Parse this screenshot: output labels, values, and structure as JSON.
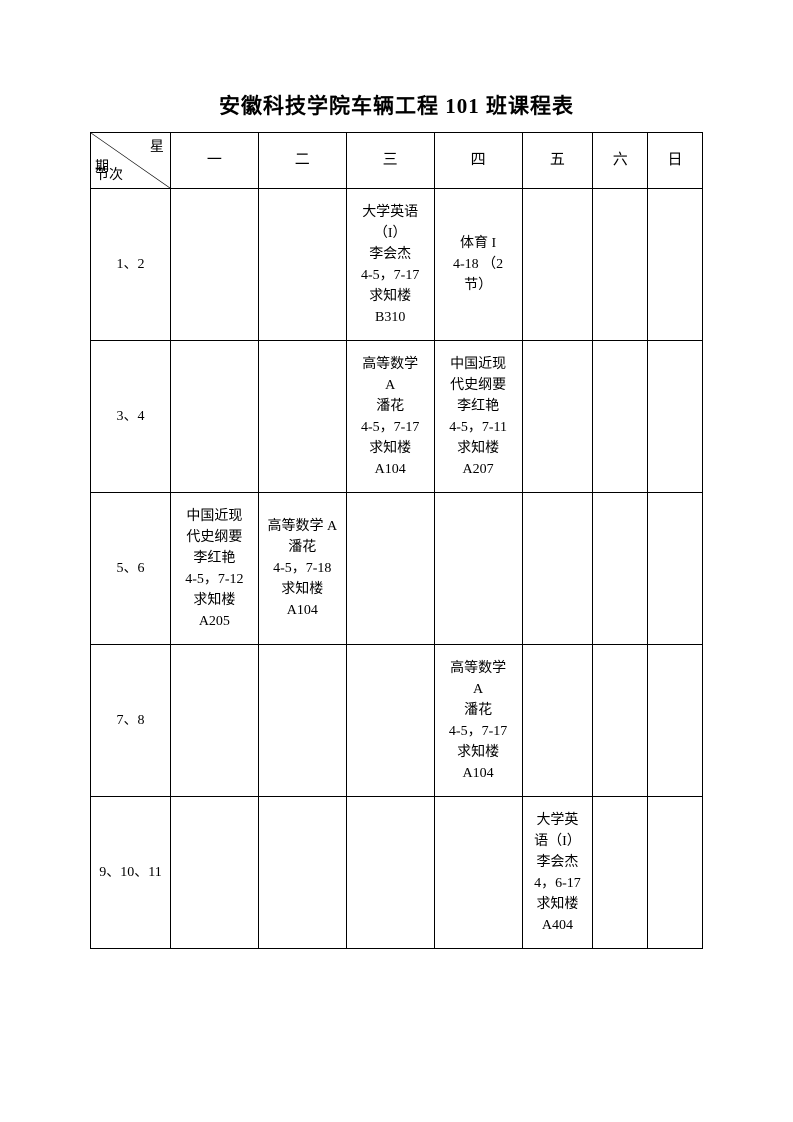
{
  "title": "安徽科技学院车辆工程 101 班课程表",
  "header": {
    "diag_top": "星",
    "diag_mid": "期",
    "diag_bot": "节次",
    "days": [
      "一",
      "二",
      "三",
      "四",
      "五",
      "六",
      "日"
    ]
  },
  "periods": [
    "1、2",
    "3、4",
    "5、6",
    "7、8",
    "9、10、11"
  ],
  "cells": {
    "r0c2": "大学英语\n（I）\n李会杰\n4-5，7-17\n求知楼\nB310",
    "r0c3": "体育 I\n4-18 （2\n节）",
    "r1c2": "高等数学\nA\n潘花\n4-5，7-17\n求知楼\nA104",
    "r1c3": "中国近现\n代史纲要\n李红艳\n4-5，7-11\n求知楼\nA207",
    "r2c0": "中国近现\n代史纲要\n李红艳\n4-5，7-12\n求知楼\nA205",
    "r2c1": "高等数学 A\n潘花\n4-5，7-18\n求知楼\nA104",
    "r3c3": "高等数学\nA\n潘花\n4-5，7-17\n求知楼\nA104",
    "r4c4": "大学英\n语（I）\n李会杰\n4，6-17\n求知楼\nA404"
  },
  "style": {
    "page_bg": "#ffffff",
    "border_color": "#000000",
    "title_fontsize": 21,
    "cell_fontsize": 14,
    "row_header_height": 56,
    "row_body_height": 152
  }
}
